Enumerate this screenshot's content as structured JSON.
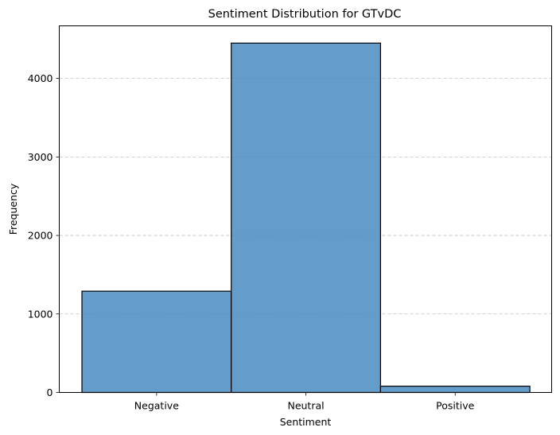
{
  "chart_data": {
    "type": "bar",
    "title": "Sentiment Distribution for GTvDC",
    "xlabel": "Sentiment",
    "ylabel": "Frequency",
    "categories": [
      "Negative",
      "Neutral",
      "Positive"
    ],
    "values": [
      1290,
      4450,
      80
    ],
    "ylim": [
      0,
      4670
    ],
    "yticks": [
      0,
      1000,
      2000,
      3000,
      4000
    ],
    "grid": "y-dashed",
    "bar_color": "#4f8fc3",
    "bar_edge_color": "#000000"
  }
}
